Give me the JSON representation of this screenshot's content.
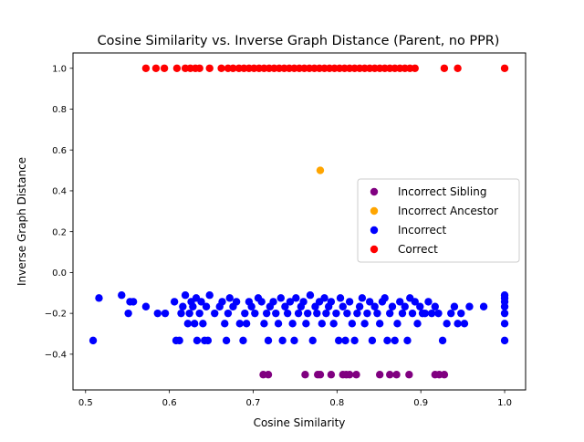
{
  "chart_data": {
    "type": "scatter",
    "title": "Cosine Similarity vs. Inverse Graph Distance (Parent, no PPR)",
    "xlabel": "Cosine Similarity",
    "ylabel": "Inverse Graph Distance",
    "xlim": [
      0.485,
      1.025
    ],
    "ylim": [
      -0.575,
      1.075
    ],
    "xticks": [
      {
        "value": 0.5,
        "label": "0.5"
      },
      {
        "value": 0.6,
        "label": "0.6"
      },
      {
        "value": 0.7,
        "label": "0.7"
      },
      {
        "value": 0.8,
        "label": "0.8"
      },
      {
        "value": 0.9,
        "label": "0.9"
      },
      {
        "value": 1.0,
        "label": "1.0"
      }
    ],
    "yticks": [
      {
        "value": -0.4,
        "label": "−0.4"
      },
      {
        "value": -0.2,
        "label": "−0.2"
      },
      {
        "value": 0.0,
        "label": "0.0"
      },
      {
        "value": 0.2,
        "label": "0.2"
      },
      {
        "value": 0.4,
        "label": "0.4"
      },
      {
        "value": 0.6,
        "label": "0.6"
      },
      {
        "value": 0.8,
        "label": "0.8"
      },
      {
        "value": 1.0,
        "label": "1.0"
      }
    ],
    "grid": false,
    "legend_position": "center-right",
    "series": [
      {
        "name": "Incorrect Sibling",
        "color": "#800080",
        "points": [
          [
            0.712,
            -0.5
          ],
          [
            0.718,
            -0.5
          ],
          [
            0.762,
            -0.5
          ],
          [
            0.777,
            -0.5
          ],
          [
            0.78,
            -0.5
          ],
          [
            0.793,
            -0.5
          ],
          [
            0.807,
            -0.5
          ],
          [
            0.811,
            -0.5
          ],
          [
            0.815,
            -0.5
          ],
          [
            0.823,
            -0.5
          ],
          [
            0.851,
            -0.5
          ],
          [
            0.863,
            -0.5
          ],
          [
            0.871,
            -0.5
          ],
          [
            0.886,
            -0.5
          ],
          [
            0.917,
            -0.5
          ],
          [
            0.922,
            -0.5
          ],
          [
            0.928,
            -0.5
          ]
        ]
      },
      {
        "name": "Incorrect Ancestor",
        "color": "#ffa500",
        "points": [
          [
            0.78,
            0.5
          ]
        ]
      },
      {
        "name": "Incorrect",
        "color": "#0000ff",
        "points": [
          [
            0.509,
            -0.333
          ],
          [
            0.516,
            -0.125
          ],
          [
            0.543,
            -0.111
          ],
          [
            0.551,
            -0.2
          ],
          [
            0.553,
            -0.143
          ],
          [
            0.557,
            -0.143
          ],
          [
            0.572,
            -0.167
          ],
          [
            0.586,
            -0.2
          ],
          [
            0.595,
            -0.2
          ],
          [
            0.606,
            -0.143
          ],
          [
            0.608,
            -0.333
          ],
          [
            0.612,
            -0.333
          ],
          [
            0.614,
            -0.2
          ],
          [
            0.616,
            -0.167
          ],
          [
            0.619,
            -0.111
          ],
          [
            0.622,
            -0.25
          ],
          [
            0.624,
            -0.2
          ],
          [
            0.626,
            -0.143
          ],
          [
            0.628,
            -0.167
          ],
          [
            0.63,
            -0.25
          ],
          [
            0.632,
            -0.125
          ],
          [
            0.633,
            -0.333
          ],
          [
            0.636,
            -0.2
          ],
          [
            0.638,
            -0.143
          ],
          [
            0.64,
            -0.25
          ],
          [
            0.642,
            -0.333
          ],
          [
            0.644,
            -0.167
          ],
          [
            0.646,
            -0.333
          ],
          [
            0.648,
            -0.111
          ],
          [
            0.654,
            -0.2
          ],
          [
            0.66,
            -0.167
          ],
          [
            0.663,
            -0.143
          ],
          [
            0.666,
            -0.25
          ],
          [
            0.668,
            -0.333
          ],
          [
            0.67,
            -0.2
          ],
          [
            0.672,
            -0.125
          ],
          [
            0.676,
            -0.167
          ],
          [
            0.68,
            -0.143
          ],
          [
            0.684,
            -0.25
          ],
          [
            0.688,
            -0.333
          ],
          [
            0.69,
            -0.2
          ],
          [
            0.692,
            -0.25
          ],
          [
            0.695,
            -0.143
          ],
          [
            0.698,
            -0.167
          ],
          [
            0.702,
            -0.2
          ],
          [
            0.706,
            -0.125
          ],
          [
            0.71,
            -0.143
          ],
          [
            0.713,
            -0.25
          ],
          [
            0.716,
            -0.2
          ],
          [
            0.718,
            -0.333
          ],
          [
            0.72,
            -0.167
          ],
          [
            0.724,
            -0.143
          ],
          [
            0.727,
            -0.2
          ],
          [
            0.73,
            -0.25
          ],
          [
            0.733,
            -0.125
          ],
          [
            0.735,
            -0.333
          ],
          [
            0.738,
            -0.167
          ],
          [
            0.741,
            -0.2
          ],
          [
            0.744,
            -0.143
          ],
          [
            0.747,
            -0.25
          ],
          [
            0.749,
            -0.333
          ],
          [
            0.751,
            -0.125
          ],
          [
            0.754,
            -0.2
          ],
          [
            0.757,
            -0.167
          ],
          [
            0.76,
            -0.143
          ],
          [
            0.763,
            -0.25
          ],
          [
            0.765,
            -0.2
          ],
          [
            0.768,
            -0.111
          ],
          [
            0.771,
            -0.333
          ],
          [
            0.774,
            -0.167
          ],
          [
            0.776,
            -0.2
          ],
          [
            0.779,
            -0.143
          ],
          [
            0.782,
            -0.25
          ],
          [
            0.785,
            -0.125
          ],
          [
            0.787,
            -0.2
          ],
          [
            0.79,
            -0.167
          ],
          [
            0.793,
            -0.143
          ],
          [
            0.796,
            -0.25
          ],
          [
            0.799,
            -0.2
          ],
          [
            0.802,
            -0.333
          ],
          [
            0.804,
            -0.125
          ],
          [
            0.807,
            -0.167
          ],
          [
            0.81,
            -0.333
          ],
          [
            0.812,
            -0.2
          ],
          [
            0.815,
            -0.143
          ],
          [
            0.818,
            -0.25
          ],
          [
            0.821,
            -0.333
          ],
          [
            0.824,
            -0.2
          ],
          [
            0.827,
            -0.167
          ],
          [
            0.83,
            -0.125
          ],
          [
            0.833,
            -0.25
          ],
          [
            0.836,
            -0.2
          ],
          [
            0.839,
            -0.143
          ],
          [
            0.842,
            -0.333
          ],
          [
            0.845,
            -0.167
          ],
          [
            0.848,
            -0.2
          ],
          [
            0.851,
            -0.25
          ],
          [
            0.854,
            -0.143
          ],
          [
            0.857,
            -0.125
          ],
          [
            0.86,
            -0.333
          ],
          [
            0.863,
            -0.2
          ],
          [
            0.866,
            -0.167
          ],
          [
            0.869,
            -0.333
          ],
          [
            0.872,
            -0.25
          ],
          [
            0.875,
            -0.143
          ],
          [
            0.878,
            -0.2
          ],
          [
            0.881,
            -0.167
          ],
          [
            0.884,
            -0.333
          ],
          [
            0.887,
            -0.125
          ],
          [
            0.89,
            -0.2
          ],
          [
            0.893,
            -0.143
          ],
          [
            0.896,
            -0.25
          ],
          [
            0.899,
            -0.167
          ],
          [
            0.902,
            -0.2
          ],
          [
            0.905,
            -0.2
          ],
          [
            0.909,
            -0.143
          ],
          [
            0.913,
            -0.2
          ],
          [
            0.917,
            -0.167
          ],
          [
            0.921,
            -0.2
          ],
          [
            0.926,
            -0.333
          ],
          [
            0.931,
            -0.25
          ],
          [
            0.936,
            -0.2
          ],
          [
            0.94,
            -0.167
          ],
          [
            0.944,
            -0.25
          ],
          [
            0.948,
            -0.2
          ],
          [
            0.952,
            -0.25
          ],
          [
            0.958,
            -0.167
          ],
          [
            0.975,
            -0.167
          ],
          [
            1.0,
            -0.111
          ],
          [
            1.0,
            -0.125
          ],
          [
            1.0,
            -0.143
          ],
          [
            1.0,
            -0.167
          ],
          [
            1.0,
            -0.2
          ],
          [
            1.0,
            -0.25
          ],
          [
            1.0,
            -0.333
          ]
        ]
      },
      {
        "name": "Correct",
        "color": "#ff0000",
        "points": [
          [
            0.572,
            1.0
          ],
          [
            0.584,
            1.0
          ],
          [
            0.594,
            1.0
          ],
          [
            0.609,
            1.0
          ],
          [
            0.619,
            1.0
          ],
          [
            0.625,
            1.0
          ],
          [
            0.631,
            1.0
          ],
          [
            0.636,
            1.0
          ],
          [
            0.648,
            1.0
          ],
          [
            0.662,
            1.0
          ],
          [
            0.67,
            1.0
          ],
          [
            0.676,
            1.0
          ],
          [
            0.683,
            1.0
          ],
          [
            0.689,
            1.0
          ],
          [
            0.695,
            1.0
          ],
          [
            0.701,
            1.0
          ],
          [
            0.707,
            1.0
          ],
          [
            0.713,
            1.0
          ],
          [
            0.719,
            1.0
          ],
          [
            0.725,
            1.0
          ],
          [
            0.731,
            1.0
          ],
          [
            0.737,
            1.0
          ],
          [
            0.743,
            1.0
          ],
          [
            0.749,
            1.0
          ],
          [
            0.755,
            1.0
          ],
          [
            0.761,
            1.0
          ],
          [
            0.767,
            1.0
          ],
          [
            0.773,
            1.0
          ],
          [
            0.779,
            1.0
          ],
          [
            0.785,
            1.0
          ],
          [
            0.791,
            1.0
          ],
          [
            0.797,
            1.0
          ],
          [
            0.803,
            1.0
          ],
          [
            0.809,
            1.0
          ],
          [
            0.815,
            1.0
          ],
          [
            0.821,
            1.0
          ],
          [
            0.827,
            1.0
          ],
          [
            0.833,
            1.0
          ],
          [
            0.839,
            1.0
          ],
          [
            0.845,
            1.0
          ],
          [
            0.851,
            1.0
          ],
          [
            0.857,
            1.0
          ],
          [
            0.863,
            1.0
          ],
          [
            0.869,
            1.0
          ],
          [
            0.875,
            1.0
          ],
          [
            0.881,
            1.0
          ],
          [
            0.887,
            1.0
          ],
          [
            0.893,
            1.0
          ],
          [
            0.928,
            1.0
          ],
          [
            0.944,
            1.0
          ],
          [
            1.0,
            1.0
          ]
        ]
      }
    ],
    "legend_order": [
      0,
      1,
      2,
      3
    ]
  }
}
